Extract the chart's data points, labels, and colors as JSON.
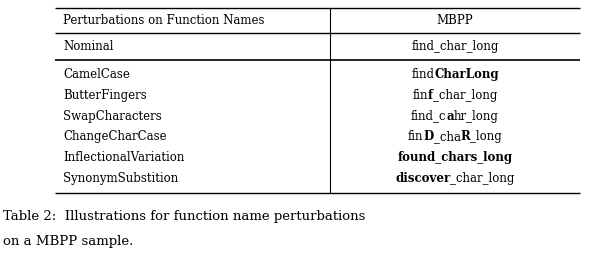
{
  "title_line1": "Table 2:  Illustrations for function name perturbations",
  "title_line2": "on a MBPP sample.",
  "header_col1": "Perturbations on Function Names",
  "header_col2": "MBPP",
  "nominal_col1": "Nominal",
  "nominal_col2": "find_char_long",
  "rows": [
    {
      "col1": "CamelCase",
      "col2_parts": [
        {
          "text": "find",
          "bold": false
        },
        {
          "text": "CharLong",
          "bold": true
        }
      ]
    },
    {
      "col1": "ButterFingers",
      "col2_parts": [
        {
          "text": "fin",
          "bold": false
        },
        {
          "text": "f",
          "bold": true
        },
        {
          "text": "_char_long",
          "bold": false
        }
      ]
    },
    {
      "col1": "SwapCharacters",
      "col2_parts": [
        {
          "text": "find_c",
          "bold": false
        },
        {
          "text": "a",
          "bold": true
        },
        {
          "text": "hr_long",
          "bold": false
        }
      ]
    },
    {
      "col1": "ChangeCharCase",
      "col2_parts": [
        {
          "text": "fin",
          "bold": false
        },
        {
          "text": "D",
          "bold": true
        },
        {
          "text": "_cha",
          "bold": false
        },
        {
          "text": "R",
          "bold": true
        },
        {
          "text": "_long",
          "bold": false
        }
      ]
    },
    {
      "col1": "InflectionalVariation",
      "col2_parts": [
        {
          "text": "found_chars_long",
          "bold": true
        }
      ]
    },
    {
      "col1": "SynonymSubstition",
      "col2_parts": [
        {
          "text": "discover",
          "bold": true
        },
        {
          "text": "_char_long",
          "bold": false
        }
      ]
    }
  ],
  "bg_color": "#ffffff",
  "text_color": "#000000",
  "font_size": 8.5,
  "caption_font_size": 9.5,
  "fig_width": 6.06,
  "fig_height": 2.8,
  "dpi": 100
}
